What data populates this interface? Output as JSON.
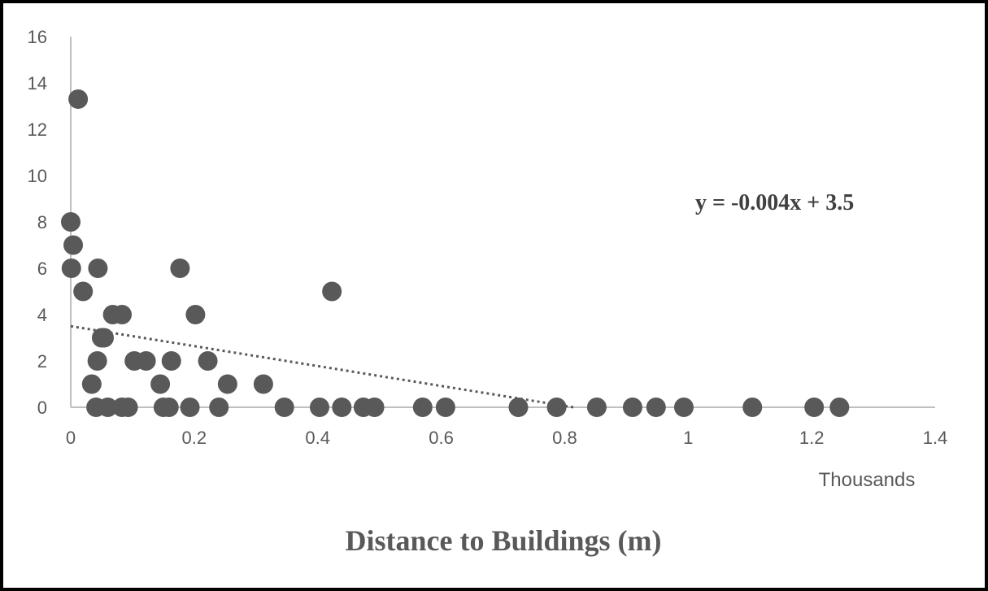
{
  "chart_data": {
    "type": "scatter",
    "title": "",
    "xlabel": "Distance to Buildings (m)",
    "ylabel": "",
    "x_units_label": "Thousands",
    "xlim": [
      0,
      1.4
    ],
    "ylim": [
      0,
      16
    ],
    "x_ticks": [
      0,
      0.2,
      0.4,
      0.6,
      0.8,
      1,
      1.2,
      1.4
    ],
    "y_ticks": [
      0,
      2,
      4,
      6,
      8,
      10,
      12,
      14,
      16
    ],
    "grid": false,
    "legend": "none",
    "marker_color": "#595959",
    "series": [
      {
        "points": [
          [
            0.0,
            8
          ],
          [
            0.001,
            6
          ],
          [
            0.004,
            7
          ],
          [
            0.012,
            13.3
          ],
          [
            0.02,
            5
          ],
          [
            0.034,
            1
          ],
          [
            0.041,
            0
          ],
          [
            0.043,
            2
          ],
          [
            0.044,
            6
          ],
          [
            0.05,
            3
          ],
          [
            0.054,
            3
          ],
          [
            0.06,
            0
          ],
          [
            0.068,
            4
          ],
          [
            0.083,
            4
          ],
          [
            0.083,
            0
          ],
          [
            0.093,
            0
          ],
          [
            0.103,
            2
          ],
          [
            0.122,
            2
          ],
          [
            0.145,
            1
          ],
          [
            0.15,
            0
          ],
          [
            0.159,
            0
          ],
          [
            0.163,
            2
          ],
          [
            0.177,
            6
          ],
          [
            0.193,
            0
          ],
          [
            0.202,
            4
          ],
          [
            0.222,
            2
          ],
          [
            0.24,
            0
          ],
          [
            0.254,
            1
          ],
          [
            0.312,
            1
          ],
          [
            0.346,
            0
          ],
          [
            0.403,
            0
          ],
          [
            0.423,
            5
          ],
          [
            0.439,
            0
          ],
          [
            0.474,
            0
          ],
          [
            0.492,
            0
          ],
          [
            0.57,
            0
          ],
          [
            0.607,
            0
          ],
          [
            0.725,
            0
          ],
          [
            0.787,
            0
          ],
          [
            0.852,
            0
          ],
          [
            0.91,
            0
          ],
          [
            0.948,
            0
          ],
          [
            0.993,
            0
          ],
          [
            1.104,
            0
          ],
          [
            1.204,
            0
          ],
          [
            1.245,
            0
          ]
        ]
      }
    ],
    "trendline": {
      "slope": -4.3,
      "intercept": 3.5,
      "x_range": [
        0,
        0.814
      ],
      "style": "dotted",
      "color": "#595959",
      "equation_label": "y = -0.004x + 3.5"
    }
  }
}
